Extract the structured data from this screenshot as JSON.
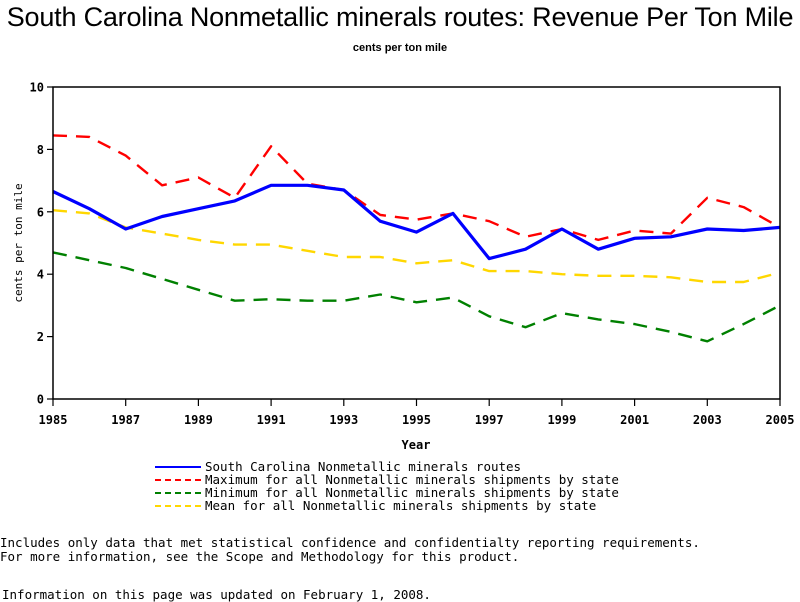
{
  "chart_data": {
    "type": "line",
    "title": "South Carolina Nonmetallic minerals routes: Revenue Per Ton Mile",
    "subtitle": "cents per ton mile",
    "xlabel": "Year",
    "ylabel": "cents per ton mile",
    "xlim": [
      1985,
      2005
    ],
    "ylim": [
      0,
      10
    ],
    "x_ticks": [
      "1985",
      "1987",
      "1989",
      "1991",
      "1993",
      "1995",
      "1997",
      "1999",
      "2001",
      "2003",
      "2005"
    ],
    "y_ticks": [
      "0",
      "2",
      "4",
      "6",
      "8",
      "10"
    ],
    "grid": false,
    "legend_position": "bottom",
    "x": [
      1985,
      1986,
      1987,
      1988,
      1989,
      1990,
      1991,
      1992,
      1993,
      1994,
      1995,
      1996,
      1997,
      1998,
      1999,
      2000,
      2001,
      2002,
      2003,
      2004,
      2005
    ],
    "series": [
      {
        "name": "South Carolina Nonmetallic minerals routes",
        "color": "#0000ff",
        "style": "solid",
        "values": [
          6.65,
          6.1,
          5.45,
          5.85,
          6.1,
          6.35,
          6.85,
          6.85,
          6.7,
          5.7,
          5.35,
          5.95,
          4.5,
          4.8,
          5.45,
          4.8,
          5.15,
          5.2,
          5.45,
          5.4,
          5.5
        ]
      },
      {
        "name": "Maximum for all Nonmetallic minerals shipments by state",
        "color": "#ff0000",
        "style": "dashed",
        "values": [
          8.45,
          8.4,
          7.8,
          6.85,
          7.1,
          6.45,
          8.1,
          6.9,
          6.7,
          5.9,
          5.75,
          5.95,
          5.7,
          5.2,
          5.45,
          5.1,
          5.4,
          5.3,
          6.45,
          6.15,
          5.5
        ]
      },
      {
        "name": "Minimum for all Nonmetallic minerals shipments by state",
        "color": "#008000",
        "style": "dashed",
        "values": [
          4.7,
          4.45,
          4.2,
          3.85,
          3.5,
          3.15,
          3.2,
          3.15,
          3.15,
          3.35,
          3.1,
          3.25,
          2.65,
          2.3,
          2.75,
          2.55,
          2.4,
          2.15,
          1.85,
          2.4,
          3.0
        ]
      },
      {
        "name": "Mean for all Nonmetallic minerals shipments by state",
        "color": "#ffd700",
        "style": "dashed",
        "values": [
          6.05,
          5.95,
          5.5,
          5.3,
          5.1,
          4.95,
          4.95,
          4.75,
          4.55,
          4.55,
          4.35,
          4.45,
          4.1,
          4.1,
          4.0,
          3.95,
          3.95,
          3.9,
          3.75,
          3.75,
          4.05
        ]
      }
    ]
  },
  "footnotes": {
    "line1": "Includes only data that met statistical confidence and confidentialty reporting requirements.",
    "line2": "For more information, see the Scope and Methodology for this product.",
    "updated": "Information on this page was updated on February 1, 2008."
  }
}
